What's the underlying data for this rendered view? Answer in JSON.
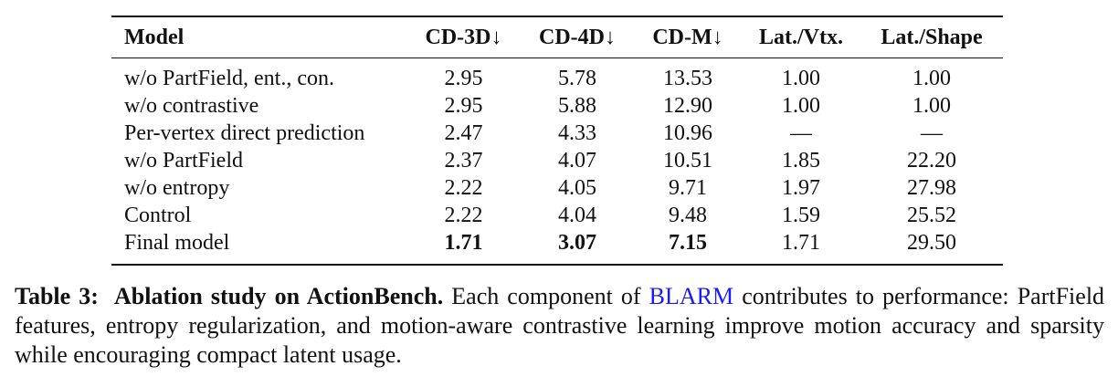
{
  "table": {
    "header": [
      "Model",
      "CD-3D↓",
      "CD-4D↓",
      "CD-M↓",
      "Lat./Vtx.",
      "Lat./Shape"
    ],
    "rows": [
      [
        "w/o PartField, ent., con.",
        "2.95",
        "5.78",
        "13.53",
        "1.00",
        "1.00"
      ],
      [
        "w/o contrastive",
        "2.95",
        "5.88",
        "12.90",
        "1.00",
        "1.00"
      ],
      [
        "Per-vertex direct prediction",
        "2.47",
        "4.33",
        "10.96",
        "—",
        "—"
      ],
      [
        "w/o PartField",
        "2.37",
        "4.07",
        "10.51",
        "1.85",
        "22.20"
      ],
      [
        "w/o entropy",
        "2.22",
        "4.05",
        "9.71",
        "1.97",
        "27.98"
      ],
      [
        "Control",
        "2.22",
        "4.04",
        "9.48",
        "1.59",
        "25.52"
      ],
      [
        "Final model",
        "1.71",
        "3.07",
        "7.15",
        "1.71",
        "29.50"
      ]
    ]
  },
  "caption": {
    "label": "Table 3:",
    "title": "Ablation study on ActionBench.",
    "text_before_link": "Each component of",
    "link": "BLARM",
    "text_after_link": "contributes to performance: PartField features, entropy regularization, and motion-aware contrastive learning improve motion accuracy and sparsity while encouraging compact latent usage."
  }
}
